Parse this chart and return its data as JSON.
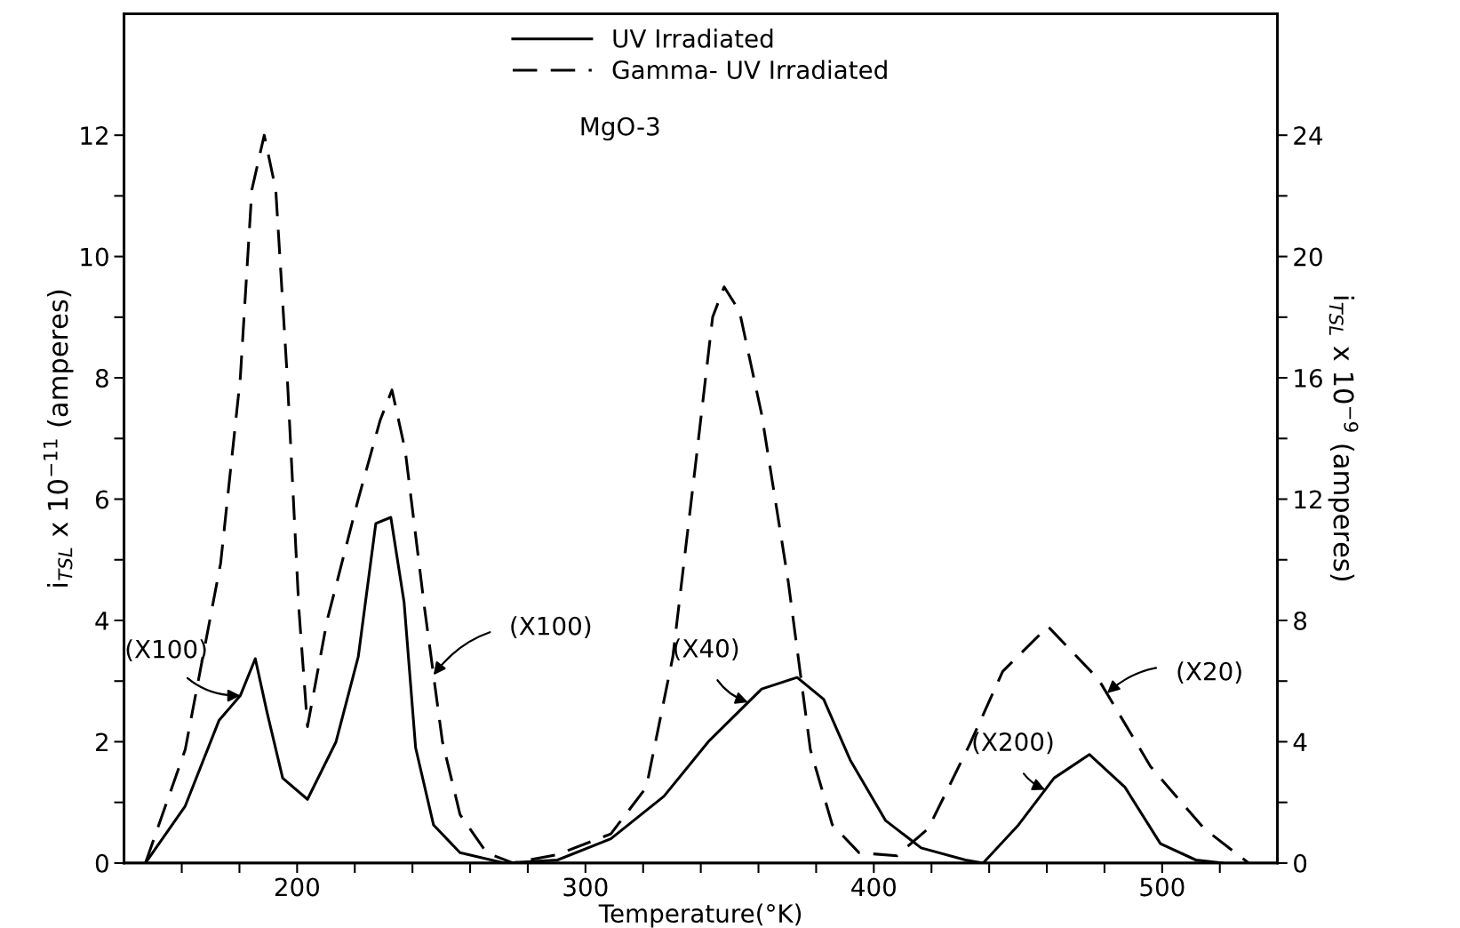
{
  "chart_data": {
    "type": "line",
    "xlabel": "Temperature(°K)",
    "ylabel": "i$_{TSL}$ x 10$^{−11}$ (amperes)",
    "y2label": "i$_{TSL}$ x 10$^{−9}$ (amperes)",
    "xlim": [
      140,
      540
    ],
    "xticks": [
      {
        "value": 160,
        "label": null
      },
      {
        "value": 180,
        "label": null
      },
      200,
      {
        "value": 220,
        "label": null
      },
      {
        "value": 240,
        "label": null
      },
      {
        "value": 260,
        "label": null
      },
      {
        "value": 280,
        "label": null
      },
      300,
      {
        "value": 320,
        "label": null
      },
      {
        "value": 340,
        "label": null
      },
      {
        "value": 360,
        "label": null
      },
      {
        "value": 380,
        "label": null
      },
      400,
      {
        "value": 420,
        "label": null
      },
      {
        "value": 440,
        "label": null
      },
      {
        "value": 460,
        "label": null
      },
      {
        "value": 480,
        "label": null
      },
      500,
      {
        "value": 520,
        "label": null
      }
    ],
    "ylim": [
      0,
      14
    ],
    "yticks": [
      0,
      {
        "value": 1,
        "label": null
      },
      2,
      {
        "value": 3,
        "label": null
      },
      4,
      {
        "value": 5,
        "label": null
      },
      6,
      {
        "value": 7,
        "label": null
      },
      8,
      {
        "value": 9,
        "label": null
      },
      10,
      {
        "value": 11,
        "label": null
      },
      12
    ],
    "y2lim": [
      0,
      28
    ],
    "y2ticks": [
      0,
      {
        "value": 2,
        "label": null
      },
      4,
      {
        "value": 6,
        "label": null
      },
      8,
      {
        "value": 10,
        "label": null
      },
      12,
      {
        "value": 14,
        "label": null
      },
      16,
      {
        "value": 18,
        "label": null
      },
      20,
      {
        "value": 22,
        "label": null
      },
      24
    ],
    "grid": false,
    "legend": "top",
    "marker": "none",
    "series": [
      {
        "name": "UV Irradiated",
        "color": "#000000",
        "line_style": "solid",
        "x": [
          147.4,
          161.2,
          172.9,
          180.3,
          185.5,
          189.5,
          195,
          203.6,
          213.5,
          221.2,
          227.3,
          232.5,
          237.1,
          241.1,
          247.3,
          256.5,
          271.9,
          290.3,
          308.8,
          327.2,
          342.6,
          361.1,
          373.4,
          382.6,
          391.8,
          404.1,
          416.4,
          431.8,
          437.9,
          450.2,
          462.5,
          474.8,
          487.1,
          499.4,
          511.7,
          520.9
        ],
        "values": [
          0,
          0.94,
          2.35,
          2.76,
          3.37,
          2.5,
          1.4,
          1.05,
          2.0,
          3.4,
          5.6,
          5.7,
          4.3,
          1.9,
          0.63,
          0.17,
          0,
          0.05,
          0.4,
          1.1,
          2.0,
          2.87,
          3.06,
          2.7,
          1.7,
          0.7,
          0.25,
          0.05,
          0,
          0.63,
          1.4,
          1.79,
          1.25,
          0.32,
          0.05,
          0
        ]
      },
      {
        "name": "Gamma- UV Irradiated",
        "color": "#000000",
        "line_style": "dashed",
        "x": [
          147.4,
          161.2,
          173.5,
          180.3,
          184.3,
          188.6,
          192.6,
          196.6,
          200.6,
          203.6,
          210.4,
          221.2,
          228.8,
          232.9,
          237.5,
          244.2,
          250.4,
          256.5,
          265.7,
          274.9,
          290.3,
          308.8,
          321.1,
          330.3,
          338,
          344.1,
          348.1,
          353.4,
          361.1,
          370.3,
          378,
          385.6,
          394.9,
          408,
          418.9,
          433.3,
          444.7,
          460.4,
          477.9,
          496,
          514.5,
          530
        ],
        "values": [
          0,
          1.87,
          4.95,
          8.0,
          11.1,
          12.0,
          11.1,
          8.0,
          4.2,
          2.25,
          4.0,
          6.0,
          7.3,
          7.8,
          6.8,
          4.2,
          2.0,
          0.8,
          0.17,
          0,
          0.14,
          0.48,
          1.25,
          3.4,
          6.5,
          9.0,
          9.5,
          9.1,
          7.4,
          4.65,
          1.87,
          0.63,
          0.17,
          0.12,
          0.57,
          1.96,
          3.16,
          3.9,
          3.03,
          1.59,
          0.57,
          0
        ]
      }
    ],
    "annotations": [
      "MgO-3",
      {
        "text": "(X100)",
        "x": 180.3,
        "y": 2.76
      },
      {
        "text": "(X100)",
        "x": 247.3,
        "y": 3.1
      },
      {
        "text": "(X40)",
        "x": 356.4,
        "y": 2.65
      },
      {
        "text": "(X200)",
        "x": 459.4,
        "y": 1.21
      },
      {
        "text": "(X20)",
        "x": 480.9,
        "y": 2.8
      }
    ]
  }
}
